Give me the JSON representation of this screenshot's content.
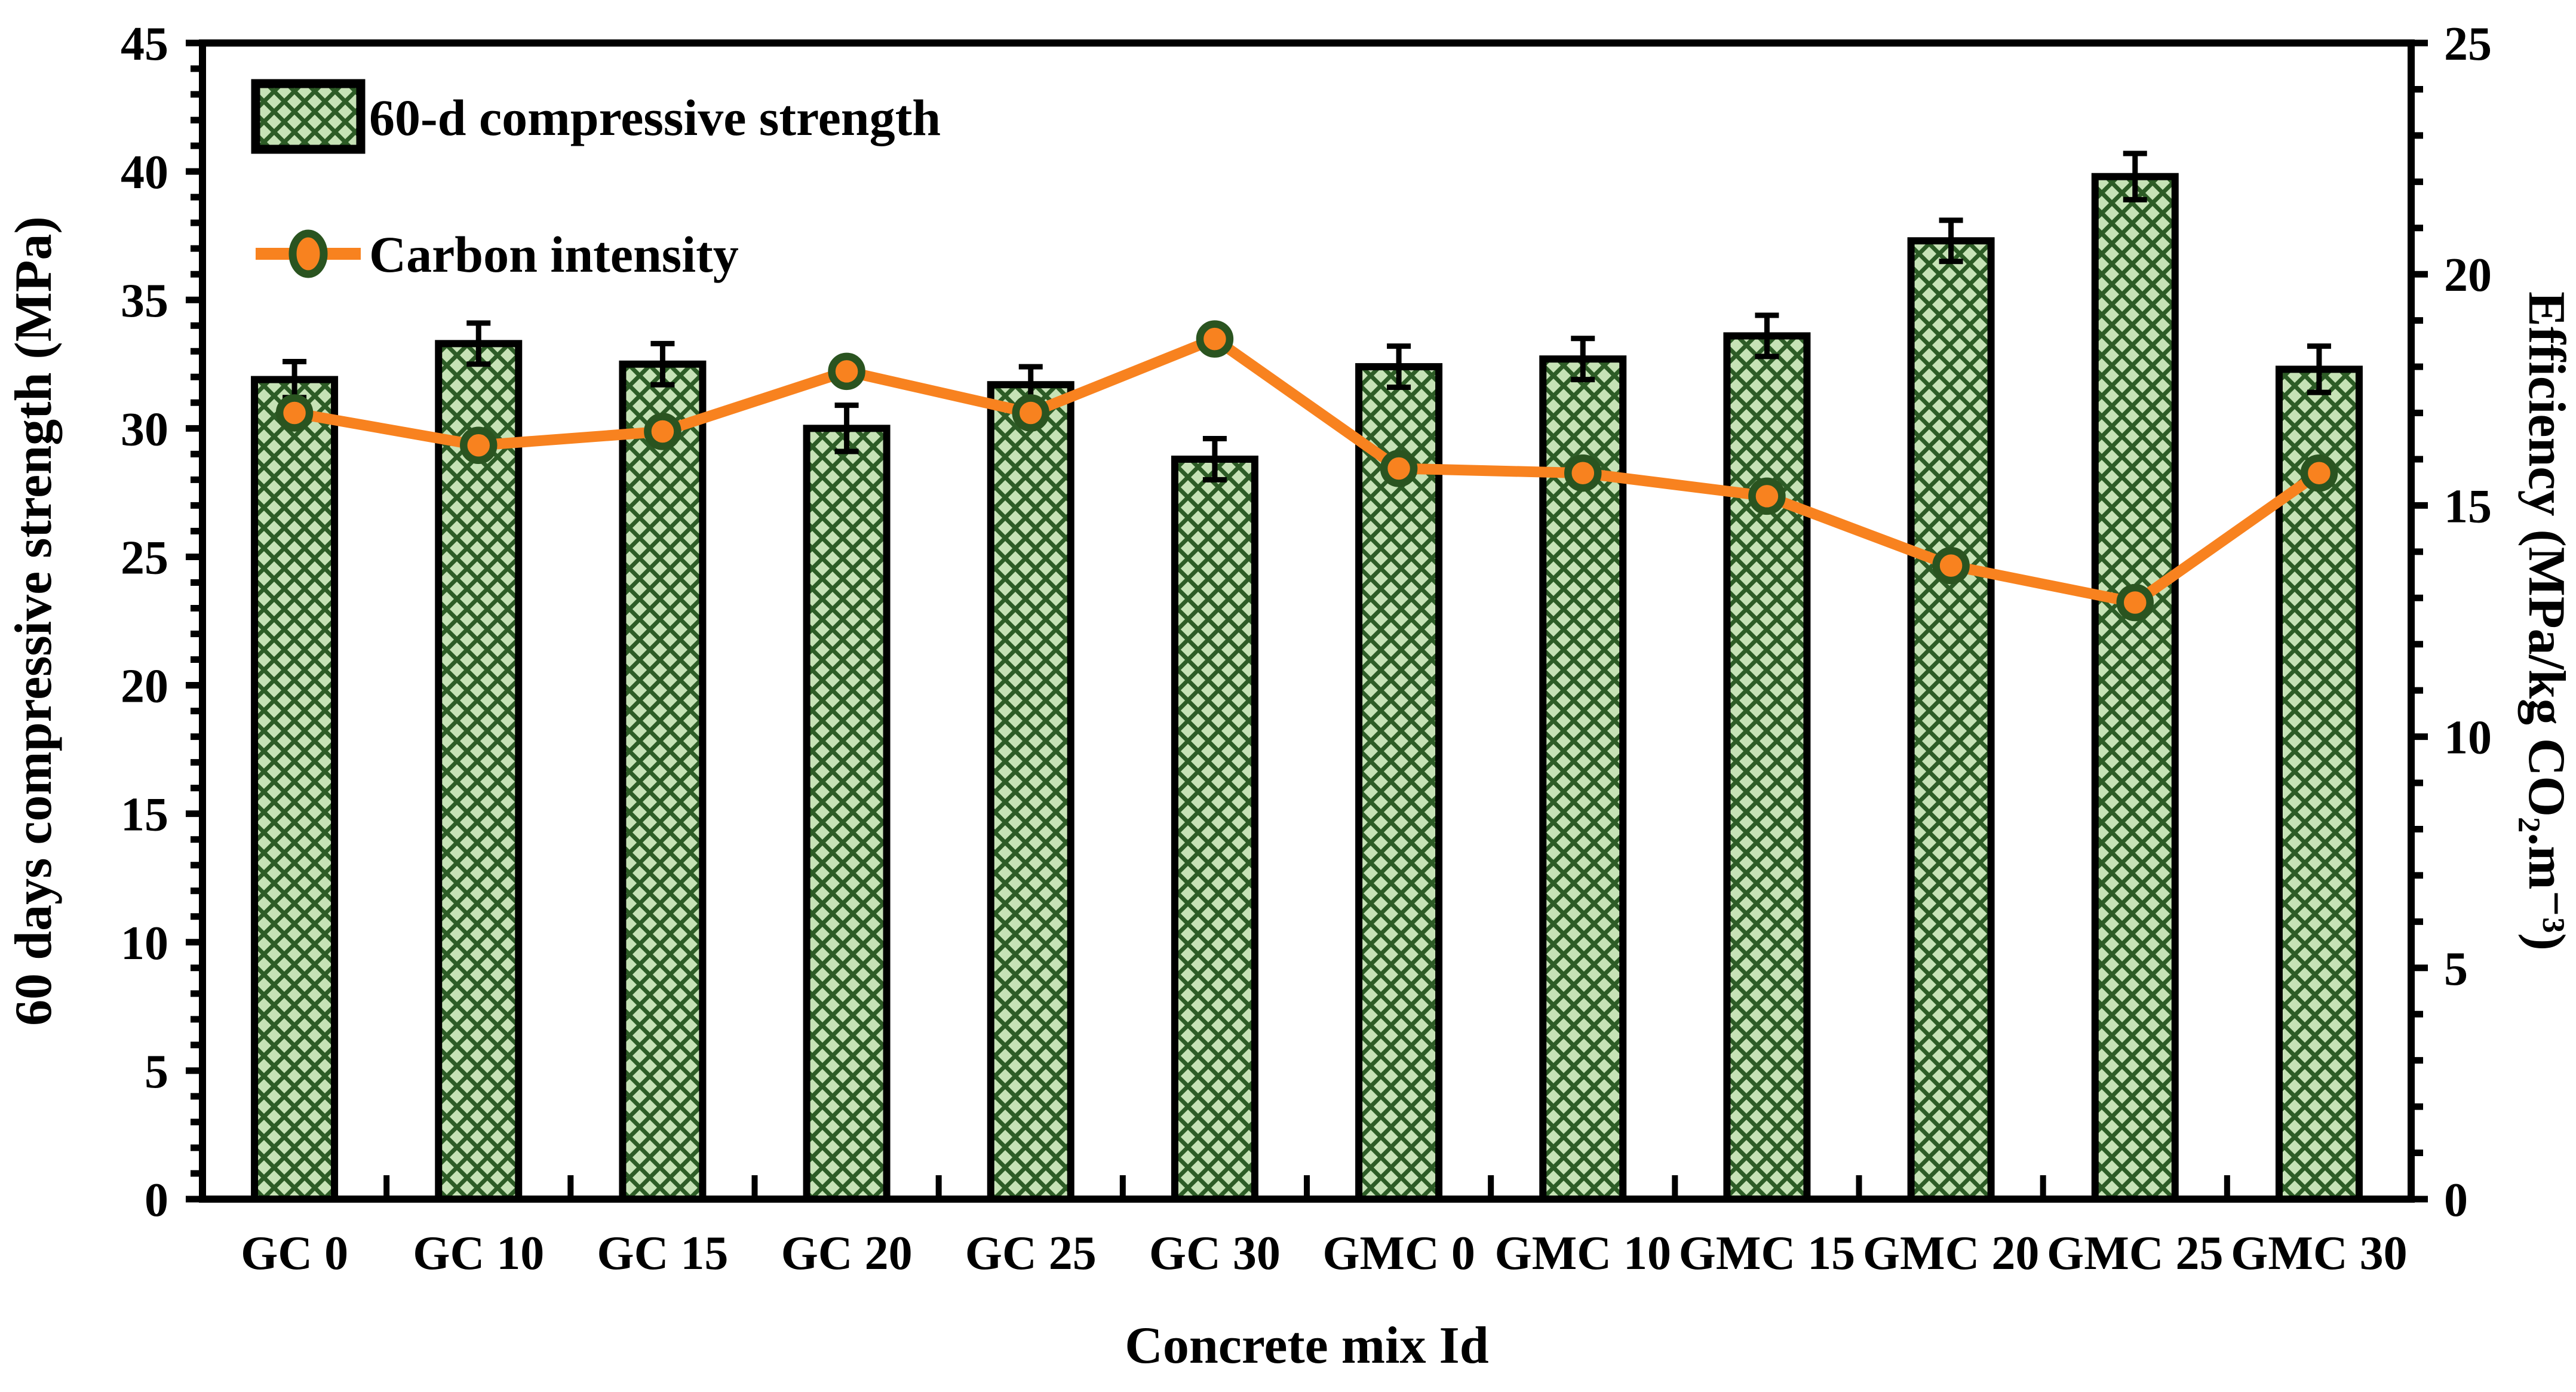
{
  "chart_data": {
    "type": "bar",
    "categories": [
      "GC 0",
      "GC 10",
      "GC 15",
      "GC 20",
      "GC 25",
      "GC 30",
      "GMC 0",
      "GMC 10",
      "GMC 15",
      "GMC 20",
      "GMC 25",
      "GMC 30"
    ],
    "series": [
      {
        "name": "60-d compressive strength",
        "type": "bar",
        "axis": "left",
        "values": [
          31.9,
          33.3,
          32.5,
          30.0,
          31.7,
          28.8,
          32.4,
          32.7,
          33.6,
          37.3,
          39.8,
          32.3
        ],
        "error": [
          0.7,
          0.8,
          0.8,
          0.9,
          0.7,
          0.8,
          0.8,
          0.8,
          0.8,
          0.8,
          0.9,
          0.9
        ]
      },
      {
        "name": "Carbon intensity",
        "type": "line",
        "axis": "right",
        "values": [
          17.0,
          16.3,
          16.6,
          17.9,
          17.0,
          18.6,
          15.8,
          15.7,
          15.2,
          13.7,
          12.9,
          15.7
        ]
      }
    ],
    "title": "",
    "xlabel": "Concrete mix Id",
    "ylabel_left": "60 days compressive strength (MPa)",
    "ylabel_right": "Efficiency (MPa/kg CO₂.m⁻³)",
    "ylim_left": [
      0,
      45
    ],
    "ylim_right": [
      0,
      25
    ],
    "yticks_left": [
      0,
      5,
      10,
      15,
      20,
      25,
      30,
      35,
      40,
      45
    ],
    "yticks_right": [
      0,
      5,
      10,
      15,
      20,
      25
    ],
    "minor_tick_step_left": 1,
    "minor_tick_step_right": 1,
    "grid": false,
    "legend_position": "upper-left"
  },
  "colors": {
    "bar_fill": "#c6e2b6",
    "bar_hatch": "#2d5c26",
    "bar_edge": "#000000",
    "line": "#f8821f",
    "marker_fill": "#f8821f",
    "marker_edge": "#2a5420",
    "axis": "#000000",
    "text": "#000000",
    "background": "#ffffff"
  }
}
